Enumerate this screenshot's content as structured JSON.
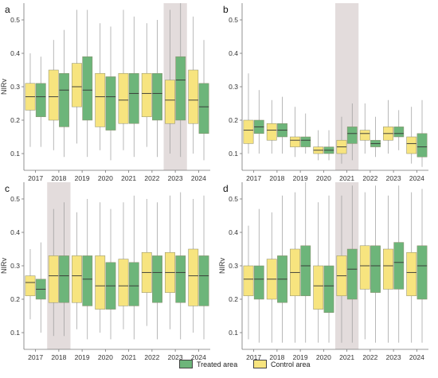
{
  "colors": {
    "treated": "#6db57a",
    "control": "#f7e47f",
    "highlight": "#e3dcdc",
    "axis": "#777777",
    "text": "#333333"
  },
  "legend": {
    "treated": {
      "label": "Treated area",
      "color": "#6db57a"
    },
    "control": {
      "label": "Control area",
      "color": "#f7e47f"
    }
  },
  "chart_data": [
    {
      "panel": "a",
      "type": "box",
      "ylabel": "NIRv",
      "ylim": [
        0.05,
        0.55
      ],
      "yticks": [
        "0.1",
        "0.2",
        "0.3",
        "0.4",
        "0.5"
      ],
      "highlight_year": "2023",
      "categories": [
        "2017",
        "2018",
        "2019",
        "2020",
        "2021",
        "2022",
        "2023",
        "2024"
      ],
      "series": [
        {
          "name": "Control area",
          "boxes": [
            [
              0.12,
              0.23,
              0.27,
              0.31,
              0.4
            ],
            [
              0.11,
              0.2,
              0.27,
              0.35,
              0.44
            ],
            [
              0.13,
              0.24,
              0.3,
              0.37,
              0.53
            ],
            [
              0.11,
              0.18,
              0.27,
              0.34,
              0.49
            ],
            [
              0.11,
              0.19,
              0.26,
              0.34,
              0.53
            ],
            [
              0.12,
              0.21,
              0.28,
              0.34,
              0.49
            ],
            [
              0.1,
              0.19,
              0.26,
              0.32,
              0.53
            ],
            [
              0.1,
              0.19,
              0.26,
              0.35,
              0.51
            ]
          ]
        },
        {
          "name": "Treated area",
          "boxes": [
            [
              0.12,
              0.21,
              0.27,
              0.31,
              0.39
            ],
            [
              0.09,
              0.18,
              0.29,
              0.34,
              0.47
            ],
            [
              0.09,
              0.2,
              0.29,
              0.39,
              0.53
            ],
            [
              0.08,
              0.17,
              0.27,
              0.33,
              0.48
            ],
            [
              0.09,
              0.19,
              0.28,
              0.34,
              0.51
            ],
            [
              0.09,
              0.2,
              0.28,
              0.34,
              0.5
            ],
            [
              0.09,
              0.2,
              0.32,
              0.39,
              0.55
            ],
            [
              0.08,
              0.16,
              0.24,
              0.31,
              0.44
            ]
          ]
        }
      ]
    },
    {
      "panel": "b",
      "type": "box",
      "ylabel": "",
      "ylim": [
        0.05,
        0.55
      ],
      "yticks": [
        "0.1",
        "0.2",
        "0.3",
        "0.4",
        "0.5"
      ],
      "highlight_year": "2021",
      "categories": [
        "2017",
        "2018",
        "2019",
        "2020",
        "2021",
        "2022",
        "2023",
        "2024"
      ],
      "series": [
        {
          "name": "Control area",
          "boxes": [
            [
              0.1,
              0.13,
              0.17,
              0.2,
              0.34
            ],
            [
              0.1,
              0.14,
              0.17,
              0.19,
              0.26
            ],
            [
              0.09,
              0.12,
              0.14,
              0.15,
              0.24
            ],
            [
              0.08,
              0.1,
              0.11,
              0.12,
              0.17
            ],
            [
              0.07,
              0.1,
              0.12,
              0.14,
              0.21
            ],
            [
              0.1,
              0.14,
              0.16,
              0.17,
              0.25
            ],
            [
              0.1,
              0.14,
              0.16,
              0.18,
              0.26
            ],
            [
              0.07,
              0.1,
              0.13,
              0.15,
              0.24
            ]
          ]
        },
        {
          "name": "Treated area",
          "boxes": [
            [
              0.1,
              0.16,
              0.18,
              0.2,
              0.29
            ],
            [
              0.1,
              0.15,
              0.17,
              0.19,
              0.27
            ],
            [
              0.1,
              0.12,
              0.14,
              0.15,
              0.22
            ],
            [
              0.08,
              0.1,
              0.11,
              0.12,
              0.17
            ],
            [
              0.08,
              0.13,
              0.16,
              0.18,
              0.25
            ],
            [
              0.09,
              0.12,
              0.13,
              0.14,
              0.21
            ],
            [
              0.11,
              0.15,
              0.16,
              0.18,
              0.23
            ],
            [
              0.06,
              0.09,
              0.12,
              0.16,
              0.26
            ]
          ]
        }
      ]
    },
    {
      "panel": "c",
      "type": "box",
      "ylabel": "NIRv",
      "ylim": [
        0.05,
        0.55
      ],
      "yticks": [
        "0.1",
        "0.2",
        "0.3",
        "0.4",
        "0.5"
      ],
      "highlight_year": "2018",
      "categories": [
        "2017",
        "2018",
        "2019",
        "2020",
        "2021",
        "2022",
        "2023",
        "2024"
      ],
      "series": [
        {
          "name": "Control area",
          "boxes": [
            [
              0.14,
              0.21,
              0.25,
              0.27,
              0.35
            ],
            [
              0.09,
              0.19,
              0.27,
              0.33,
              0.47
            ],
            [
              0.11,
              0.19,
              0.27,
              0.33,
              0.46
            ],
            [
              0.1,
              0.17,
              0.24,
              0.33,
              0.49
            ],
            [
              0.11,
              0.18,
              0.24,
              0.32,
              0.49
            ],
            [
              0.12,
              0.22,
              0.28,
              0.34,
              0.5
            ],
            [
              0.11,
              0.22,
              0.28,
              0.34,
              0.51
            ],
            [
              0.1,
              0.18,
              0.27,
              0.35,
              0.5
            ]
          ]
        },
        {
          "name": "Treated area",
          "boxes": [
            [
              0.1,
              0.2,
              0.23,
              0.26,
              0.37
            ],
            [
              0.09,
              0.19,
              0.27,
              0.33,
              0.49
            ],
            [
              0.08,
              0.18,
              0.26,
              0.33,
              0.5
            ],
            [
              0.08,
              0.17,
              0.24,
              0.31,
              0.47
            ],
            [
              0.08,
              0.18,
              0.24,
              0.31,
              0.51
            ],
            [
              0.08,
              0.19,
              0.28,
              0.33,
              0.49
            ],
            [
              0.08,
              0.19,
              0.28,
              0.33,
              0.52
            ],
            [
              0.08,
              0.18,
              0.27,
              0.33,
              0.51
            ]
          ]
        }
      ]
    },
    {
      "panel": "d",
      "type": "box",
      "ylabel": "NIRv",
      "ylim": [
        0.05,
        0.55
      ],
      "yticks": [
        "0.1",
        "0.2",
        "0.3",
        "0.4",
        "0.5"
      ],
      "highlight_year": "2021",
      "categories": [
        "2017",
        "2018",
        "2019",
        "2020",
        "2021",
        "2022",
        "2023",
        "2024"
      ],
      "series": [
        {
          "name": "Control area",
          "boxes": [
            [
              0.08,
              0.21,
              0.26,
              0.3,
              0.42
            ],
            [
              0.07,
              0.2,
              0.26,
              0.32,
              0.46
            ],
            [
              0.07,
              0.21,
              0.28,
              0.35,
              0.52
            ],
            [
              0.07,
              0.17,
              0.24,
              0.3,
              0.49
            ],
            [
              0.07,
              0.21,
              0.27,
              0.33,
              0.51
            ],
            [
              0.08,
              0.23,
              0.3,
              0.36,
              0.52
            ],
            [
              0.07,
              0.23,
              0.3,
              0.35,
              0.51
            ],
            [
              0.07,
              0.21,
              0.28,
              0.34,
              0.52
            ]
          ]
        },
        {
          "name": "Treated area",
          "boxes": [
            [
              0.07,
              0.2,
              0.26,
              0.3,
              0.47
            ],
            [
              0.07,
              0.19,
              0.26,
              0.33,
              0.51
            ],
            [
              0.07,
              0.21,
              0.3,
              0.36,
              0.55
            ],
            [
              0.07,
              0.16,
              0.24,
              0.3,
              0.51
            ],
            [
              0.07,
              0.2,
              0.29,
              0.35,
              0.54
            ],
            [
              0.07,
              0.22,
              0.3,
              0.36,
              0.54
            ],
            [
              0.07,
              0.23,
              0.31,
              0.37,
              0.54
            ],
            [
              0.07,
              0.2,
              0.3,
              0.36,
              0.53
            ]
          ]
        }
      ]
    }
  ]
}
